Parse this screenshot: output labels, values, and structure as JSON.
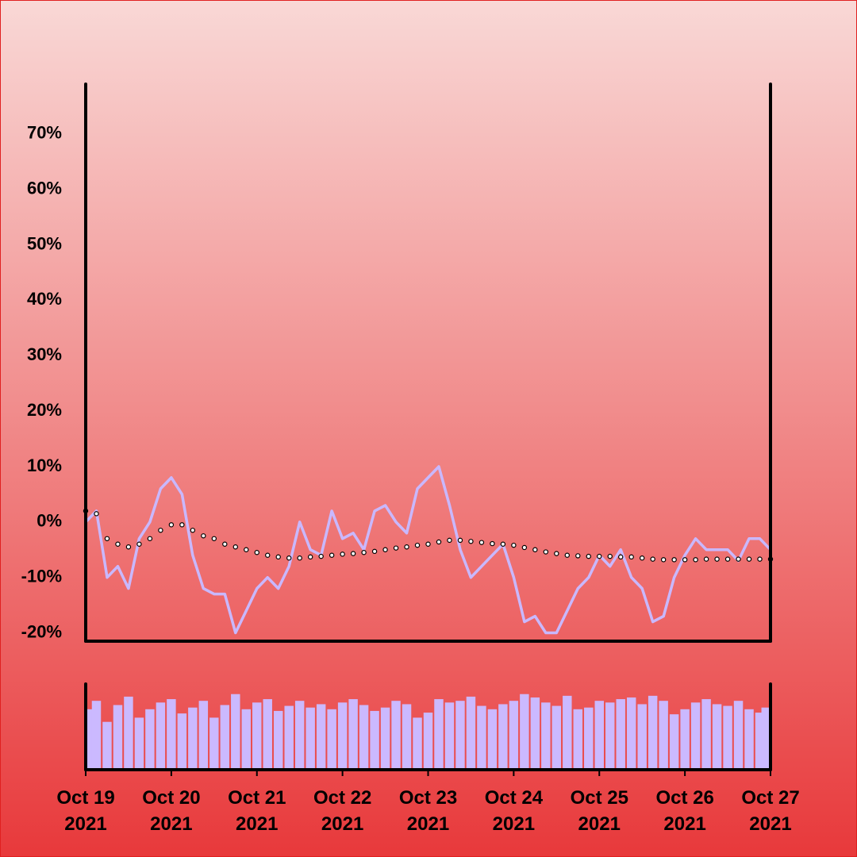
{
  "chart_data": [
    {
      "type": "line",
      "x": [
        "2021-10-19 00:00",
        "2021-10-19 03:00",
        "2021-10-19 06:00",
        "2021-10-19 09:00",
        "2021-10-19 12:00",
        "2021-10-19 15:00",
        "2021-10-19 18:00",
        "2021-10-19 21:00",
        "2021-10-20 00:00",
        "2021-10-20 03:00",
        "2021-10-20 06:00",
        "2021-10-20 09:00",
        "2021-10-20 12:00",
        "2021-10-20 15:00",
        "2021-10-20 18:00",
        "2021-10-20 21:00",
        "2021-10-21 00:00",
        "2021-10-21 03:00",
        "2021-10-21 06:00",
        "2021-10-21 09:00",
        "2021-10-21 12:00",
        "2021-10-21 15:00",
        "2021-10-21 18:00",
        "2021-10-21 21:00",
        "2021-10-22 00:00",
        "2021-10-22 03:00",
        "2021-10-22 06:00",
        "2021-10-22 09:00",
        "2021-10-22 12:00",
        "2021-10-22 15:00",
        "2021-10-22 18:00",
        "2021-10-22 21:00",
        "2021-10-23 00:00",
        "2021-10-23 03:00",
        "2021-10-23 06:00",
        "2021-10-23 09:00",
        "2021-10-23 12:00",
        "2021-10-23 15:00",
        "2021-10-23 18:00",
        "2021-10-23 21:00",
        "2021-10-24 00:00",
        "2021-10-24 03:00",
        "2021-10-24 06:00",
        "2021-10-24 09:00",
        "2021-10-24 12:00",
        "2021-10-24 15:00",
        "2021-10-24 18:00",
        "2021-10-24 21:00",
        "2021-10-25 00:00",
        "2021-10-25 03:00",
        "2021-10-25 06:00",
        "2021-10-25 09:00",
        "2021-10-25 12:00",
        "2021-10-25 15:00",
        "2021-10-25 18:00",
        "2021-10-25 21:00",
        "2021-10-26 00:00",
        "2021-10-26 03:00",
        "2021-10-26 06:00",
        "2021-10-26 09:00",
        "2021-10-26 12:00",
        "2021-10-26 15:00",
        "2021-10-26 18:00",
        "2021-10-26 21:00",
        "2021-10-27 00:00"
      ],
      "xlim": [
        "2021-10-19 00:00",
        "2021-10-27 00:00"
      ],
      "ylim": [
        -21.5,
        79
      ],
      "yticks": [
        {
          "value": -20,
          "label": "-20%"
        },
        {
          "value": -10,
          "label": "-10%"
        },
        {
          "value": 0,
          "label": "0%"
        },
        {
          "value": 10,
          "label": "10%"
        },
        {
          "value": 20,
          "label": "20%"
        },
        {
          "value": 30,
          "label": "30%"
        },
        {
          "value": 40,
          "label": "40%"
        },
        {
          "value": 50,
          "label": "50%"
        },
        {
          "value": 60,
          "label": "60%"
        },
        {
          "value": 70,
          "label": "70%"
        }
      ],
      "series": [
        {
          "style": "line",
          "color": "#c9b8ff",
          "values": [
            0,
            2,
            -10,
            -8,
            -12,
            -3,
            0,
            6,
            8,
            5,
            -6,
            -12,
            -13,
            -13,
            -20,
            -16,
            -12,
            -10,
            -12,
            -8,
            0,
            -5,
            -6,
            2,
            -3,
            -2,
            -5,
            2,
            3,
            0,
            -2,
            6,
            8,
            10,
            3,
            -5,
            -10,
            -8,
            -6,
            -4,
            -10,
            -18,
            -17,
            -20,
            -20,
            -16,
            -12,
            -10,
            -6,
            -8,
            -5,
            -10,
            -12,
            -18,
            -17,
            -10,
            -6,
            -3,
            -5,
            -5,
            -5,
            -7,
            -3,
            -3,
            -5
          ]
        },
        {
          "style": "dots",
          "color": "#000000",
          "values": [
            2,
            1.5,
            -3,
            -4,
            -4.5,
            -4,
            -3,
            -1.5,
            -0.5,
            -0.5,
            -1.5,
            -2.5,
            -3,
            -4,
            -4.5,
            -5,
            -5.5,
            -6,
            -6.3,
            -6.5,
            -6.5,
            -6.3,
            -6.2,
            -6,
            -5.8,
            -5.7,
            -5.5,
            -5.3,
            -5,
            -4.7,
            -4.5,
            -4.2,
            -4,
            -3.6,
            -3.3,
            -3.3,
            -3.5,
            -3.7,
            -3.9,
            -4,
            -4.2,
            -4.6,
            -5,
            -5.4,
            -5.7,
            -6,
            -6.1,
            -6.2,
            -6.2,
            -6.2,
            -6.3,
            -6.3,
            -6.5,
            -6.7,
            -6.8,
            -6.8,
            -6.8,
            -6.8,
            -6.7,
            -6.7,
            -6.7,
            -6.7,
            -6.7,
            -6.7,
            -6.7
          ]
        }
      ]
    },
    {
      "type": "bar",
      "color": "#cbb9ff",
      "x": [
        "2021-10-19 00:00",
        "2021-10-19 03:00",
        "2021-10-19 06:00",
        "2021-10-19 09:00",
        "2021-10-19 12:00",
        "2021-10-19 15:00",
        "2021-10-19 18:00",
        "2021-10-19 21:00",
        "2021-10-20 00:00",
        "2021-10-20 03:00",
        "2021-10-20 06:00",
        "2021-10-20 09:00",
        "2021-10-20 12:00",
        "2021-10-20 15:00",
        "2021-10-20 18:00",
        "2021-10-20 21:00",
        "2021-10-21 00:00",
        "2021-10-21 03:00",
        "2021-10-21 06:00",
        "2021-10-21 09:00",
        "2021-10-21 12:00",
        "2021-10-21 15:00",
        "2021-10-21 18:00",
        "2021-10-21 21:00",
        "2021-10-22 00:00",
        "2021-10-22 03:00",
        "2021-10-22 06:00",
        "2021-10-22 09:00",
        "2021-10-22 12:00",
        "2021-10-22 15:00",
        "2021-10-22 18:00",
        "2021-10-22 21:00",
        "2021-10-23 00:00",
        "2021-10-23 03:00",
        "2021-10-23 06:00",
        "2021-10-23 09:00",
        "2021-10-23 12:00",
        "2021-10-23 15:00",
        "2021-10-23 18:00",
        "2021-10-23 21:00",
        "2021-10-24 00:00",
        "2021-10-24 03:00",
        "2021-10-24 06:00",
        "2021-10-24 09:00",
        "2021-10-24 12:00",
        "2021-10-24 15:00",
        "2021-10-24 18:00",
        "2021-10-24 21:00",
        "2021-10-25 00:00",
        "2021-10-25 03:00",
        "2021-10-25 06:00",
        "2021-10-25 09:00",
        "2021-10-25 12:00",
        "2021-10-25 15:00",
        "2021-10-25 18:00",
        "2021-10-25 21:00",
        "2021-10-26 00:00",
        "2021-10-26 03:00",
        "2021-10-26 06:00",
        "2021-10-26 09:00",
        "2021-10-26 12:00",
        "2021-10-26 15:00",
        "2021-10-26 18:00",
        "2021-10-26 21:00",
        "2021-10-27 00:00"
      ],
      "xlim": [
        "2021-10-19 00:00",
        "2021-10-27 00:00"
      ],
      "ylim": [
        0,
        100
      ],
      "values": [
        70,
        80,
        55,
        75,
        85,
        60,
        70,
        78,
        82,
        65,
        72,
        80,
        60,
        75,
        88,
        70,
        78,
        82,
        68,
        74,
        80,
        72,
        76,
        70,
        78,
        82,
        75,
        68,
        72,
        80,
        76,
        60,
        66,
        82,
        78,
        80,
        85,
        74,
        70,
        76,
        80,
        88,
        84,
        78,
        74,
        86,
        70,
        72,
        80,
        78,
        82,
        84,
        76,
        86,
        80,
        64,
        70,
        78,
        82,
        76,
        74,
        80,
        70,
        66,
        72
      ],
      "xticks": [
        {
          "value": "2021-10-19 00:00",
          "label": "Oct 19\n2021"
        },
        {
          "value": "2021-10-20 00:00",
          "label": "Oct 20\n2021"
        },
        {
          "value": "2021-10-21 00:00",
          "label": "Oct 21\n2021"
        },
        {
          "value": "2021-10-22 00:00",
          "label": "Oct 22\n2021"
        },
        {
          "value": "2021-10-23 00:00",
          "label": "Oct 23\n2021"
        },
        {
          "value": "2021-10-24 00:00",
          "label": "Oct 24\n2021"
        },
        {
          "value": "2021-10-25 00:00",
          "label": "Oct 25\n2021"
        },
        {
          "value": "2021-10-26 00:00",
          "label": "Oct 26\n2021"
        },
        {
          "value": "2021-10-27 00:00",
          "label": "Oct 27\n2021"
        }
      ]
    }
  ]
}
